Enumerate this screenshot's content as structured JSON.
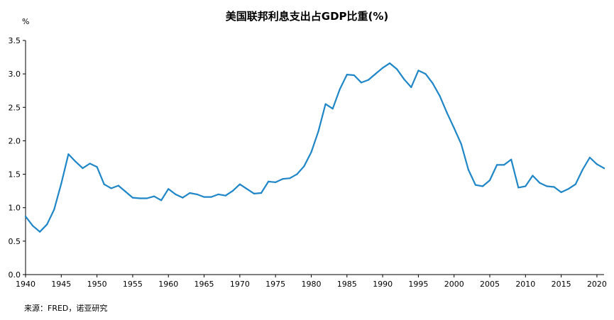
{
  "chart_data": {
    "type": "line",
    "title": "美国联邦利息支出占GDP比重(%)",
    "ylabel": "%",
    "xlabel": "",
    "ylim": [
      0,
      3.5
    ],
    "xlim": [
      1940,
      2021
    ],
    "grid": false,
    "y_ticks": [
      "0.0",
      "0.5",
      "1.0",
      "1.5",
      "2.0",
      "2.5",
      "3.0",
      "3.5"
    ],
    "x_ticks": [
      "1940",
      "1945",
      "1950",
      "1955",
      "1960",
      "1965",
      "1970",
      "1975",
      "1980",
      "1985",
      "1990",
      "1995",
      "2000",
      "2005",
      "2010",
      "2015",
      "2020"
    ],
    "line_color": "#1f86c8",
    "series": [
      {
        "x": [
          1940,
          1941,
          1942,
          1943,
          1944,
          1945,
          1946,
          1947,
          1948,
          1949,
          1950,
          1951,
          1952,
          1953,
          1954,
          1955,
          1956,
          1957,
          1958,
          1959,
          1960,
          1961,
          1962,
          1963,
          1964,
          1965,
          1966,
          1967,
          1968,
          1969,
          1970,
          1971,
          1972,
          1973,
          1974,
          1975,
          1976,
          1977,
          1978,
          1979,
          1980,
          1981,
          1982,
          1983,
          1984,
          1985,
          1986,
          1987,
          1988,
          1989,
          1990,
          1991,
          1992,
          1993,
          1994,
          1995,
          1996,
          1997,
          1998,
          1999,
          2000,
          2001,
          2002,
          2003,
          2004,
          2005,
          2006,
          2007,
          2008,
          2009,
          2010,
          2011,
          2012,
          2013,
          2014,
          2015,
          2016,
          2017,
          2018,
          2019,
          2020,
          2021
        ],
        "values": [
          0.87,
          0.73,
          0.64,
          0.75,
          0.97,
          1.36,
          1.8,
          1.69,
          1.59,
          1.66,
          1.61,
          1.35,
          1.29,
          1.33,
          1.24,
          1.15,
          1.14,
          1.14,
          1.17,
          1.11,
          1.28,
          1.2,
          1.15,
          1.22,
          1.2,
          1.16,
          1.16,
          1.2,
          1.18,
          1.25,
          1.35,
          1.28,
          1.21,
          1.22,
          1.39,
          1.38,
          1.43,
          1.44,
          1.5,
          1.62,
          1.83,
          2.14,
          2.55,
          2.48,
          2.77,
          2.99,
          2.98,
          2.87,
          2.91,
          3.0,
          3.09,
          3.16,
          3.07,
          2.92,
          2.8,
          3.05,
          3.0,
          2.86,
          2.67,
          2.42,
          2.19,
          1.95,
          1.57,
          1.34,
          1.32,
          1.41,
          1.64,
          1.64,
          1.72,
          1.3,
          1.32,
          1.48,
          1.37,
          1.32,
          1.31,
          1.23,
          1.28,
          1.35,
          1.57,
          1.75,
          1.65,
          1.59
        ]
      }
    ]
  },
  "source_note": "来源：FRED，诺亚研究"
}
